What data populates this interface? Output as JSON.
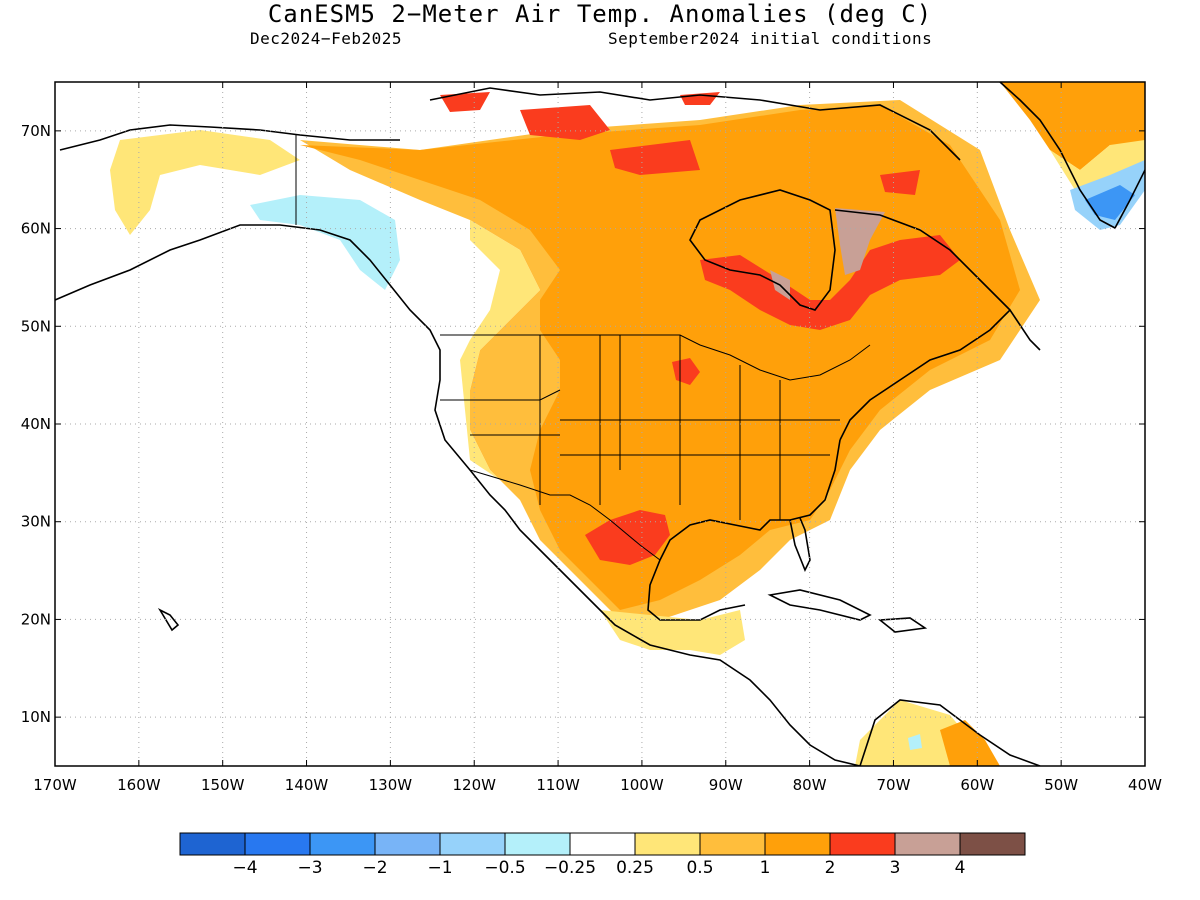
{
  "title": "CanESM5 2−Meter Air Temp. Anomalies (deg C)",
  "subtitle_left": "Dec2024−Feb2025",
  "subtitle_right": "September2024 initial conditions",
  "map": {
    "projection": "lat-lon",
    "lon_range": [
      -170,
      -40
    ],
    "lat_range": [
      5,
      75
    ],
    "grid": true,
    "grid_style": "dotted",
    "lat_labels": [
      "70N",
      "60N",
      "50N",
      "40N",
      "30N",
      "20N",
      "10N"
    ],
    "lon_labels": [
      "170W",
      "160W",
      "150W",
      "140W",
      "130W",
      "120W",
      "110W",
      "100W",
      "90W",
      "80W",
      "70W",
      "60W",
      "50W",
      "40W"
    ],
    "region": "North America",
    "features": {
      "warm_anomaly_core": "Eastern Canada / Hudson Bay rim (2–4 deg C)",
      "positive_anomaly_conus": "1–2 deg C over most of the United States",
      "texas_maximum": "2–3 deg C over north-central Mexico / Texas",
      "neutral_west": "Alaska interior and Pacific Northwest near zero",
      "cold_pockets": "Southeast Alaska coast and eastern Greenland (-0.25 to -4)"
    }
  },
  "colorbar": {
    "colors": [
      "#1e64d2",
      "#2878f0",
      "#3c96f5",
      "#78b4f7",
      "#96d2fa",
      "#b4f0fa",
      "#ffffff",
      "#ffe678",
      "#ffbe3c",
      "#ffa00a",
      "#fa3c1e",
      "#c8a096",
      "#7d5046"
    ],
    "tick_labels": [
      "−4",
      "−3",
      "−2",
      "−1",
      "−0.5",
      "−0.25",
      "0.25",
      "0.5",
      "1",
      "2",
      "3",
      "4"
    ]
  }
}
